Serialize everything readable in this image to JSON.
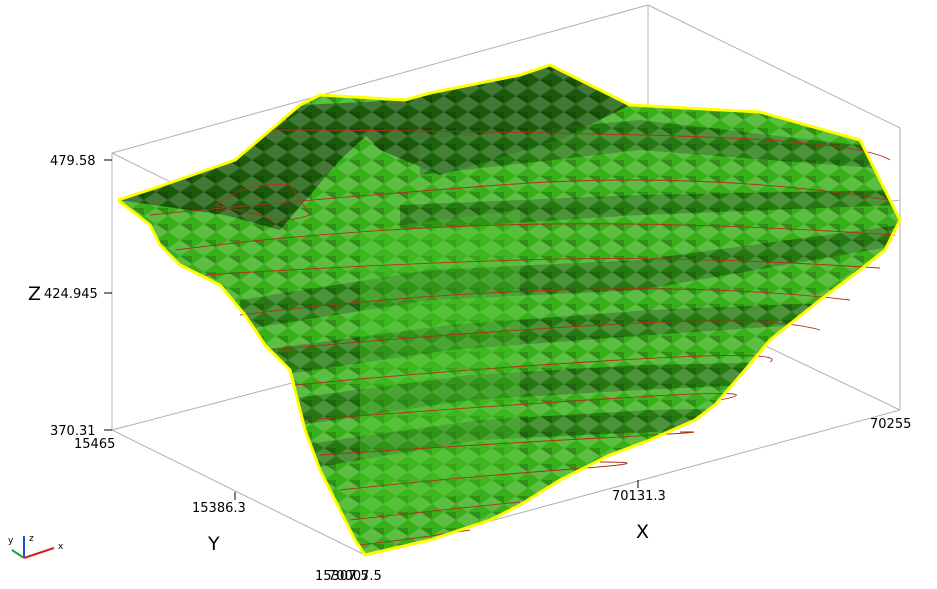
{
  "colors": {
    "background": "#ffffff",
    "surface_main": "#38b01a",
    "surface_light": "#48c828",
    "surface_dark": "#1f6a0d",
    "surface_top": "#1a5a0a",
    "outline": "#ffff00",
    "contour": "#b0301a",
    "bbox": "#b0b0b0",
    "triad_x": "#d42020",
    "triad_y": "#20a040",
    "triad_z": "#2050d0"
  },
  "axes": {
    "x": {
      "title": "X",
      "ticks": [
        "70007.5",
        "70131.3",
        "70255"
      ]
    },
    "y": {
      "title": "Y",
      "ticks": [
        "15465",
        "15386.3",
        "15307.5"
      ]
    },
    "z": {
      "title": "Z",
      "ticks": [
        "479.58",
        "424.945",
        "370.31"
      ]
    }
  },
  "orientation_triad": {
    "x": "x",
    "y": "y",
    "z": "z"
  }
}
